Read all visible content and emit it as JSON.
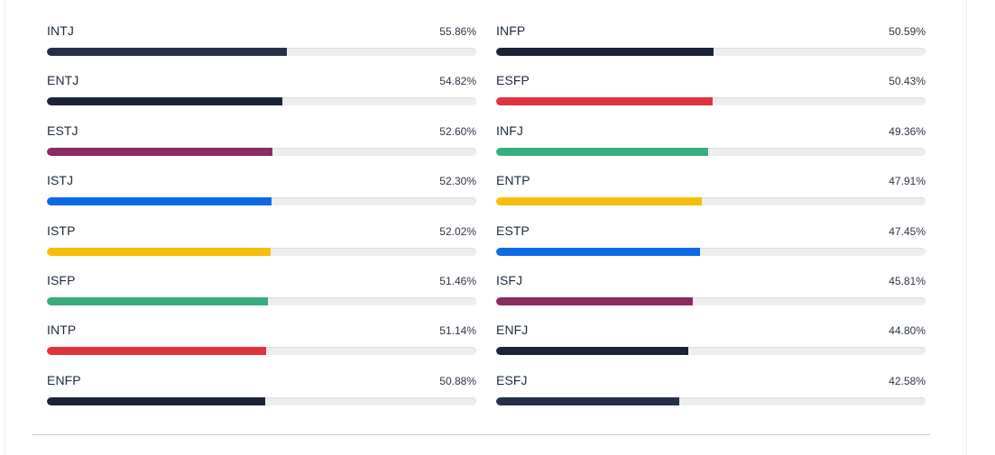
{
  "colors": {
    "navy": "#232b45",
    "navy_dark": "#1b2339",
    "purple": "#8a2b62",
    "blue": "#0d6ae6",
    "yellow": "#f6be0a",
    "green": "#37ad80",
    "red": "#e0323f"
  },
  "left_column": [
    {
      "type": "INTJ",
      "percent_label": "55.86%",
      "percent": 55.86,
      "color": "#262f4a"
    },
    {
      "type": "ENTJ",
      "percent_label": "54.82%",
      "percent": 54.82,
      "color": "#1b2339"
    },
    {
      "type": "ESTJ",
      "percent_label": "52.60%",
      "percent": 52.6,
      "color": "#8a2b62"
    },
    {
      "type": "ISTJ",
      "percent_label": "52.30%",
      "percent": 52.3,
      "color": "#0d6ae6"
    },
    {
      "type": "ISTP",
      "percent_label": "52.02%",
      "percent": 52.02,
      "color": "#f6be0a"
    },
    {
      "type": "ISFP",
      "percent_label": "51.46%",
      "percent": 51.46,
      "color": "#37ad80"
    },
    {
      "type": "INTP",
      "percent_label": "51.14%",
      "percent": 51.14,
      "color": "#e0323f"
    },
    {
      "type": "ENFP",
      "percent_label": "50.88%",
      "percent": 50.88,
      "color": "#1b2339"
    }
  ],
  "right_column": [
    {
      "type": "INFP",
      "percent_label": "50.59%",
      "percent": 50.59,
      "color": "#1b2339"
    },
    {
      "type": "ESFP",
      "percent_label": "50.43%",
      "percent": 50.43,
      "color": "#e0323f"
    },
    {
      "type": "INFJ",
      "percent_label": "49.36%",
      "percent": 49.36,
      "color": "#37ad80"
    },
    {
      "type": "ENTP",
      "percent_label": "47.91%",
      "percent": 47.91,
      "color": "#f6be0a"
    },
    {
      "type": "ESTP",
      "percent_label": "47.45%",
      "percent": 47.45,
      "color": "#0d6ae6"
    },
    {
      "type": "ISFJ",
      "percent_label": "45.81%",
      "percent": 45.81,
      "color": "#8a2b62"
    },
    {
      "type": "ENFJ",
      "percent_label": "44.80%",
      "percent": 44.8,
      "color": "#1b2339"
    },
    {
      "type": "ESFJ",
      "percent_label": "42.58%",
      "percent": 42.58,
      "color": "#262f4a"
    }
  ]
}
